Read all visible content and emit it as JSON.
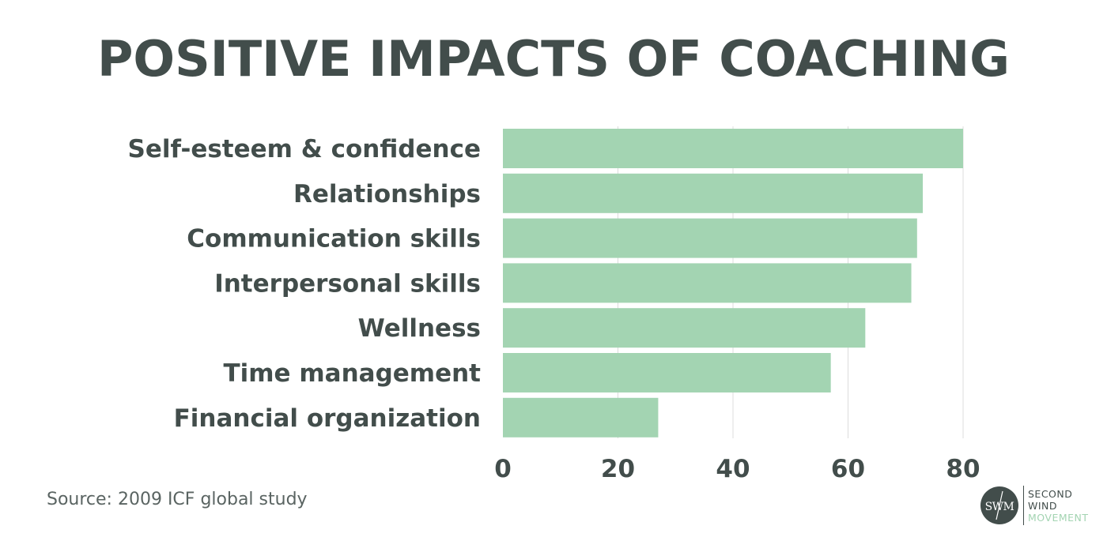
{
  "title": "POSITIVE IMPACTS OF COACHING",
  "source": "Source: 2009 ICF global study",
  "logo": {
    "mark": "SWM",
    "line1": "SECOND",
    "line2": "WIND",
    "line3": "MOVEMENT",
    "dark_color": "#424d4b",
    "accent_color": "#a3d4b2"
  },
  "colors": {
    "bar": "#a3d4b2",
    "text": "#424d4b",
    "grid": "#dcdcdc"
  },
  "chart_data": {
    "type": "bar",
    "orientation": "horizontal",
    "title": "POSITIVE IMPACTS OF COACHING",
    "categories": [
      "Self-esteem & confidence",
      "Relationships",
      "Communication skills",
      "Interpersonal skills",
      "Wellness",
      "Time management",
      "Financial organization"
    ],
    "values": [
      80,
      73,
      72,
      71,
      63,
      57,
      27
    ],
    "xlim": [
      0,
      80
    ],
    "xticks": [
      "0",
      "20",
      "40",
      "60",
      "80"
    ],
    "xtick_values": [
      0,
      20,
      40,
      60,
      80
    ],
    "grid": true,
    "xlabel": "",
    "ylabel": ""
  }
}
